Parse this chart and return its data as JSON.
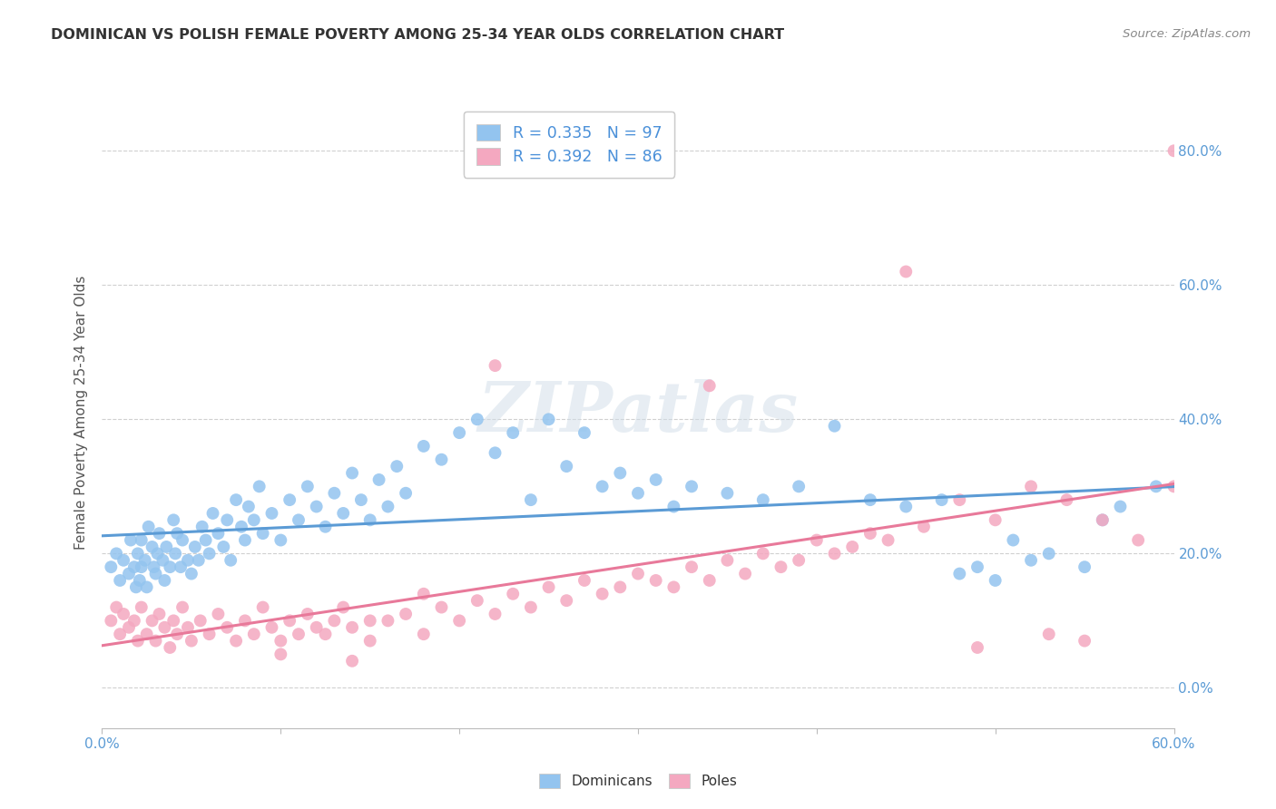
{
  "title": "DOMINICAN VS POLISH FEMALE POVERTY AMONG 25-34 YEAR OLDS CORRELATION CHART",
  "source": "Source: ZipAtlas.com",
  "ylabel": "Female Poverty Among 25-34 Year Olds",
  "xlim": [
    0.0,
    0.6
  ],
  "ylim": [
    -0.06,
    0.88
  ],
  "xticks": [
    0.0,
    0.1,
    0.2,
    0.3,
    0.4,
    0.5,
    0.6
  ],
  "yticks": [
    0.0,
    0.2,
    0.4,
    0.6,
    0.8
  ],
  "dominicans_color": "#93c4ef",
  "poles_color": "#f4a8c0",
  "trendline_dominicans_color": "#5b9bd5",
  "trendline_poles_color": "#e8799a",
  "legend_label_dominicans": "R = 0.335   N = 97",
  "legend_label_poles": "R = 0.392   N = 86",
  "legend_bottom_dominicans": "Dominicans",
  "legend_bottom_poles": "Poles",
  "background_color": "#ffffff",
  "watermark": "ZIPatlas",
  "grid_color": "#d0d0d0",
  "dominicans_x": [
    0.005,
    0.008,
    0.01,
    0.012,
    0.015,
    0.016,
    0.018,
    0.019,
    0.02,
    0.021,
    0.022,
    0.022,
    0.024,
    0.025,
    0.026,
    0.028,
    0.029,
    0.03,
    0.031,
    0.032,
    0.034,
    0.035,
    0.036,
    0.038,
    0.04,
    0.041,
    0.042,
    0.044,
    0.045,
    0.048,
    0.05,
    0.052,
    0.054,
    0.056,
    0.058,
    0.06,
    0.062,
    0.065,
    0.068,
    0.07,
    0.072,
    0.075,
    0.078,
    0.08,
    0.082,
    0.085,
    0.088,
    0.09,
    0.095,
    0.1,
    0.105,
    0.11,
    0.115,
    0.12,
    0.125,
    0.13,
    0.135,
    0.14,
    0.145,
    0.15,
    0.155,
    0.16,
    0.165,
    0.17,
    0.18,
    0.19,
    0.2,
    0.21,
    0.22,
    0.23,
    0.24,
    0.25,
    0.26,
    0.27,
    0.28,
    0.29,
    0.3,
    0.31,
    0.32,
    0.33,
    0.35,
    0.37,
    0.39,
    0.41,
    0.43,
    0.45,
    0.47,
    0.49,
    0.51,
    0.53,
    0.55,
    0.57,
    0.59,
    0.48,
    0.5,
    0.52,
    0.56
  ],
  "dominicans_y": [
    0.18,
    0.2,
    0.16,
    0.19,
    0.17,
    0.22,
    0.18,
    0.15,
    0.2,
    0.16,
    0.18,
    0.22,
    0.19,
    0.15,
    0.24,
    0.21,
    0.18,
    0.17,
    0.2,
    0.23,
    0.19,
    0.16,
    0.21,
    0.18,
    0.25,
    0.2,
    0.23,
    0.18,
    0.22,
    0.19,
    0.17,
    0.21,
    0.19,
    0.24,
    0.22,
    0.2,
    0.26,
    0.23,
    0.21,
    0.25,
    0.19,
    0.28,
    0.24,
    0.22,
    0.27,
    0.25,
    0.3,
    0.23,
    0.26,
    0.22,
    0.28,
    0.25,
    0.3,
    0.27,
    0.24,
    0.29,
    0.26,
    0.32,
    0.28,
    0.25,
    0.31,
    0.27,
    0.33,
    0.29,
    0.36,
    0.34,
    0.38,
    0.4,
    0.35,
    0.38,
    0.28,
    0.4,
    0.33,
    0.38,
    0.3,
    0.32,
    0.29,
    0.31,
    0.27,
    0.3,
    0.29,
    0.28,
    0.3,
    0.39,
    0.28,
    0.27,
    0.28,
    0.18,
    0.22,
    0.2,
    0.18,
    0.27,
    0.3,
    0.17,
    0.16,
    0.19,
    0.25
  ],
  "poles_x": [
    0.005,
    0.008,
    0.01,
    0.012,
    0.015,
    0.018,
    0.02,
    0.022,
    0.025,
    0.028,
    0.03,
    0.032,
    0.035,
    0.038,
    0.04,
    0.042,
    0.045,
    0.048,
    0.05,
    0.055,
    0.06,
    0.065,
    0.07,
    0.075,
    0.08,
    0.085,
    0.09,
    0.095,
    0.1,
    0.105,
    0.11,
    0.115,
    0.12,
    0.125,
    0.13,
    0.135,
    0.14,
    0.15,
    0.16,
    0.17,
    0.18,
    0.19,
    0.2,
    0.21,
    0.22,
    0.23,
    0.24,
    0.25,
    0.26,
    0.27,
    0.28,
    0.29,
    0.3,
    0.31,
    0.32,
    0.33,
    0.34,
    0.35,
    0.36,
    0.37,
    0.38,
    0.39,
    0.4,
    0.41,
    0.42,
    0.43,
    0.44,
    0.46,
    0.48,
    0.5,
    0.52,
    0.54,
    0.56,
    0.58,
    0.6,
    0.1,
    0.14,
    0.34,
    0.49,
    0.53,
    0.55,
    0.6,
    0.45,
    0.22,
    0.15,
    0.18
  ],
  "poles_y": [
    0.1,
    0.12,
    0.08,
    0.11,
    0.09,
    0.1,
    0.07,
    0.12,
    0.08,
    0.1,
    0.07,
    0.11,
    0.09,
    0.06,
    0.1,
    0.08,
    0.12,
    0.09,
    0.07,
    0.1,
    0.08,
    0.11,
    0.09,
    0.07,
    0.1,
    0.08,
    0.12,
    0.09,
    0.07,
    0.1,
    0.08,
    0.11,
    0.09,
    0.08,
    0.1,
    0.12,
    0.09,
    0.07,
    0.1,
    0.11,
    0.08,
    0.12,
    0.1,
    0.13,
    0.11,
    0.14,
    0.12,
    0.15,
    0.13,
    0.16,
    0.14,
    0.15,
    0.17,
    0.16,
    0.15,
    0.18,
    0.16,
    0.19,
    0.17,
    0.2,
    0.18,
    0.19,
    0.22,
    0.2,
    0.21,
    0.23,
    0.22,
    0.24,
    0.28,
    0.25,
    0.3,
    0.28,
    0.25,
    0.22,
    0.3,
    0.05,
    0.04,
    0.45,
    0.06,
    0.08,
    0.07,
    0.8,
    0.62,
    0.48,
    0.1,
    0.14
  ]
}
